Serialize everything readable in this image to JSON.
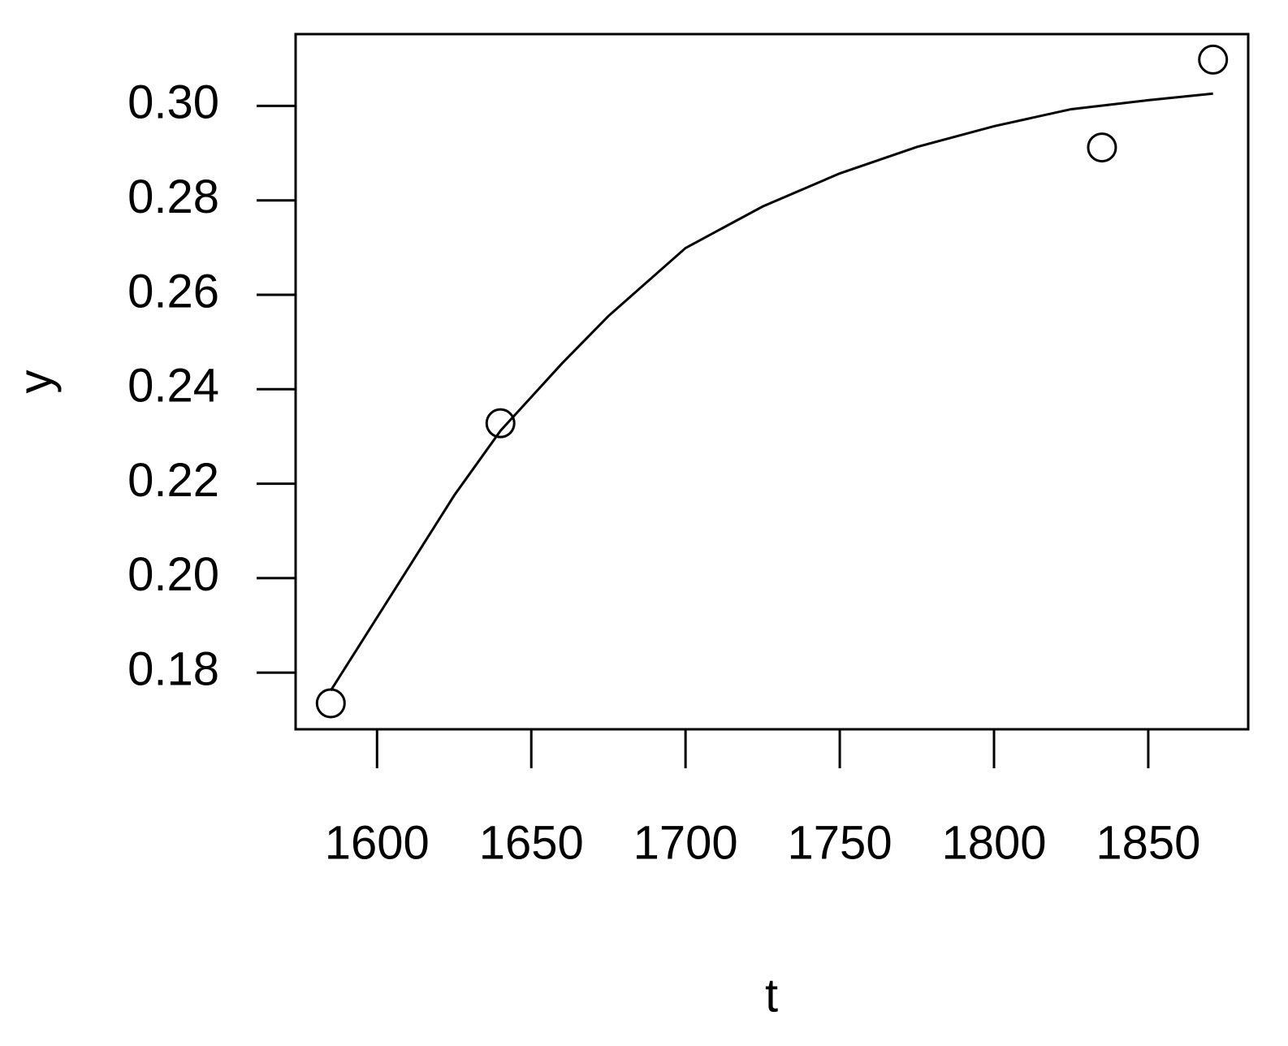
{
  "chart_data": {
    "type": "scatter",
    "xlabel": "t",
    "ylabel": "y",
    "xlim": [
      1573.6,
      1882.4
    ],
    "ylim": [
      0.168,
      0.3152
    ],
    "xticks": [
      1600,
      1650,
      1700,
      1750,
      1800,
      1850
    ],
    "yticks": [
      0.18,
      {
        "value": 0.2,
        "label": "0.20"
      },
      0.22,
      0.24,
      0.26,
      0.28,
      {
        "value": 0.3,
        "label": "0.30"
      }
    ],
    "color": "#000000",
    "series": [
      {
        "type": "scatter",
        "x": [
          1585,
          1640,
          1835,
          1871
        ],
        "values": [
          0.1735,
          0.2328,
          0.2912,
          0.3098
        ]
      },
      {
        "type": "line",
        "x": [
          1585,
          1610,
          1625,
          1640,
          1660,
          1675,
          1700,
          1725,
          1750,
          1775,
          1800,
          1825,
          1850,
          1871
        ],
        "values": [
          0.1762,
          0.202,
          0.2175,
          0.2312,
          0.2455,
          0.2555,
          0.2699,
          0.2787,
          0.2857,
          0.2913,
          0.2957,
          0.2993,
          0.3012,
          0.3026
        ]
      }
    ]
  }
}
